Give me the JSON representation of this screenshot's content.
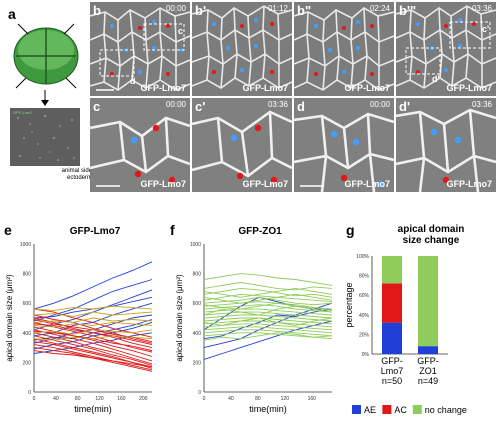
{
  "panels": {
    "a": {
      "label": "a",
      "embryo_caption": "animal side\nectoderm",
      "inset_tag": "GFP-Lmo7"
    },
    "b": {
      "label": "b",
      "time": "00:00",
      "tag": "GFP-Lmo7",
      "box_c": "c",
      "box_d": "d"
    },
    "b1": {
      "label": "b'",
      "time": "01:12",
      "tag": "GFP-Lmo7"
    },
    "b2": {
      "label": "b\"",
      "time": "02:24",
      "tag": "GFP-Lmo7"
    },
    "b3": {
      "label": "b'\"",
      "time": "03:36",
      "tag": "GFP-Lmo7",
      "box_c": "c'",
      "box_d": "d'"
    },
    "c": {
      "label": "c",
      "time": "00:00",
      "tag": "GFP-Lmo7"
    },
    "c1": {
      "label": "c'",
      "time": "03:36",
      "tag": "GFP-Lmo7"
    },
    "d": {
      "label": "d",
      "time": "00:00",
      "tag": "GFP-Lmo7"
    },
    "d1": {
      "label": "d'",
      "time": "03:36",
      "tag": "GFP-Lmo7"
    },
    "e": {
      "label": "e"
    },
    "f": {
      "label": "f"
    },
    "g": {
      "label": "g"
    }
  },
  "colors": {
    "blue": "#1f3fd8",
    "red": "#e01818",
    "green": "#8fcc5a",
    "gold": "#c8a21a"
  },
  "chart_data": [
    {
      "type": "line",
      "title": "GFP-Lmo7",
      "xlabel": "time(min)",
      "ylabel": "apical domain size (μm²)",
      "xlim": [
        0,
        216
      ],
      "ylim": [
        0,
        1000
      ],
      "xticks": [
        "0",
        "40",
        "80",
        "120",
        "160",
        "200"
      ],
      "yticks": [
        "0",
        "200",
        "400",
        "600",
        "800",
        "1000"
      ],
      "series": [
        {
          "color": "blue",
          "values": [
            560,
            600,
            650,
            710,
            770,
            820,
            880
          ]
        },
        {
          "color": "blue",
          "values": [
            480,
            520,
            560,
            620,
            680,
            720,
            760
          ]
        },
        {
          "color": "blue",
          "values": [
            420,
            460,
            490,
            540,
            590,
            640,
            690
          ]
        },
        {
          "color": "blue",
          "values": [
            380,
            400,
            450,
            470,
            520,
            560,
            600
          ]
        },
        {
          "color": "blue",
          "values": [
            330,
            360,
            400,
            420,
            460,
            500,
            520
          ]
        },
        {
          "color": "blue",
          "values": [
            290,
            320,
            340,
            380,
            400,
            430,
            470
          ]
        },
        {
          "color": "blue",
          "values": [
            260,
            280,
            300,
            330,
            350,
            380,
            400
          ]
        },
        {
          "color": "blue",
          "values": [
            350,
            370,
            360,
            400,
            420,
            450,
            490
          ]
        },
        {
          "color": "blue",
          "values": [
            500,
            510,
            540,
            560,
            580,
            610,
            640
          ]
        },
        {
          "color": "red",
          "values": [
            560,
            540,
            500,
            470,
            430,
            400,
            370
          ]
        },
        {
          "color": "red",
          "values": [
            520,
            490,
            470,
            430,
            400,
            360,
            330
          ]
        },
        {
          "color": "red",
          "values": [
            500,
            470,
            430,
            400,
            370,
            330,
            300
          ]
        },
        {
          "color": "red",
          "values": [
            470,
            440,
            410,
            380,
            340,
            300,
            270
          ]
        },
        {
          "color": "red",
          "values": [
            440,
            410,
            380,
            350,
            310,
            280,
            240
          ]
        },
        {
          "color": "red",
          "values": [
            420,
            390,
            360,
            330,
            290,
            250,
            210
          ]
        },
        {
          "color": "red",
          "values": [
            400,
            370,
            340,
            300,
            270,
            230,
            190
          ]
        },
        {
          "color": "red",
          "values": [
            380,
            350,
            320,
            290,
            250,
            220,
            180
          ]
        },
        {
          "color": "red",
          "values": [
            360,
            330,
            300,
            270,
            240,
            200,
            160
          ]
        },
        {
          "color": "red",
          "values": [
            340,
            320,
            290,
            260,
            230,
            200,
            170
          ]
        },
        {
          "color": "red",
          "values": [
            320,
            300,
            270,
            240,
            210,
            180,
            150
          ]
        },
        {
          "color": "red",
          "values": [
            300,
            280,
            260,
            230,
            200,
            170,
            140
          ]
        },
        {
          "color": "red",
          "values": [
            460,
            450,
            420,
            400,
            380,
            350,
            320
          ]
        },
        {
          "color": "red",
          "values": [
            490,
            460,
            440,
            420,
            390,
            370,
            340
          ]
        },
        {
          "color": "red",
          "values": [
            410,
            400,
            380,
            360,
            330,
            310,
            280
          ]
        },
        {
          "color": "red",
          "values": [
            280,
            260,
            250,
            230,
            210,
            190,
            170
          ]
        },
        {
          "color": "gold",
          "values": [
            520,
            530,
            510,
            540,
            520,
            530,
            540
          ]
        },
        {
          "color": "gold",
          "values": [
            450,
            440,
            460,
            450,
            470,
            460,
            450
          ]
        },
        {
          "color": "gold",
          "values": [
            400,
            410,
            390,
            420,
            410,
            400,
            420
          ]
        },
        {
          "color": "gold",
          "values": [
            470,
            480,
            470,
            500,
            480,
            490,
            480
          ]
        },
        {
          "color": "gold",
          "values": [
            360,
            350,
            370,
            360,
            380,
            370,
            360
          ]
        },
        {
          "color": "gold",
          "values": [
            560,
            550,
            570,
            560,
            580,
            570,
            560
          ]
        }
      ]
    },
    {
      "type": "line",
      "title": "GFP-ZO1",
      "xlabel": "time(min)",
      "ylabel": "apical domain size (μm²)",
      "xlim": [
        0,
        190
      ],
      "ylim": [
        0,
        1000
      ],
      "xticks": [
        "0",
        "40",
        "80",
        "120",
        "160"
      ],
      "yticks": [
        "0",
        "200",
        "400",
        "600",
        "800",
        "1000"
      ],
      "series": [
        {
          "color": "blue",
          "values": [
            300,
            330,
            360,
            420,
            470,
            520,
            560,
            600
          ]
        },
        {
          "color": "blue",
          "values": [
            220,
            260,
            300,
            340,
            380,
            420,
            450,
            480
          ]
        },
        {
          "color": "blue",
          "values": [
            420,
            500,
            580,
            640,
            610,
            580,
            560,
            560
          ]
        },
        {
          "color": "blue",
          "values": [
            360,
            380,
            430,
            470,
            520,
            510,
            540,
            560
          ]
        },
        {
          "color": "green",
          "values": [
            760,
            780,
            800,
            790,
            770,
            760,
            740,
            720
          ]
        },
        {
          "color": "green",
          "values": [
            700,
            720,
            740,
            720,
            700,
            690,
            710,
            700
          ]
        },
        {
          "color": "green",
          "values": [
            660,
            680,
            700,
            690,
            670,
            650,
            660,
            640
          ]
        },
        {
          "color": "green",
          "values": [
            620,
            640,
            660,
            650,
            640,
            630,
            620,
            610
          ]
        },
        {
          "color": "green",
          "values": [
            600,
            610,
            620,
            640,
            620,
            600,
            590,
            600
          ]
        },
        {
          "color": "green",
          "values": [
            580,
            590,
            600,
            610,
            600,
            580,
            570,
            560
          ]
        },
        {
          "color": "green",
          "values": [
            560,
            570,
            580,
            590,
            580,
            560,
            550,
            540
          ]
        },
        {
          "color": "green",
          "values": [
            540,
            550,
            560,
            560,
            550,
            540,
            530,
            520
          ]
        },
        {
          "color": "green",
          "values": [
            520,
            530,
            540,
            540,
            530,
            520,
            510,
            500
          ]
        },
        {
          "color": "green",
          "values": [
            500,
            510,
            520,
            520,
            510,
            500,
            490,
            480
          ]
        },
        {
          "color": "green",
          "values": [
            480,
            490,
            500,
            500,
            490,
            480,
            470,
            460
          ]
        },
        {
          "color": "green",
          "values": [
            460,
            470,
            480,
            480,
            470,
            460,
            450,
            440
          ]
        },
        {
          "color": "green",
          "values": [
            440,
            450,
            460,
            460,
            450,
            440,
            430,
            420
          ]
        },
        {
          "color": "green",
          "values": [
            420,
            430,
            440,
            440,
            430,
            420,
            410,
            400
          ]
        },
        {
          "color": "green",
          "values": [
            400,
            410,
            420,
            420,
            410,
            400,
            390,
            380
          ]
        },
        {
          "color": "green",
          "values": [
            380,
            390,
            400,
            400,
            390,
            380,
            370,
            360
          ]
        },
        {
          "color": "green",
          "values": [
            640,
            620,
            600,
            620,
            640,
            660,
            640,
            620
          ]
        },
        {
          "color": "green",
          "values": [
            520,
            560,
            540,
            520,
            560,
            580,
            560,
            540
          ]
        },
        {
          "color": "green",
          "values": [
            470,
            450,
            480,
            500,
            470,
            450,
            480,
            500
          ]
        },
        {
          "color": "green",
          "values": [
            350,
            370,
            360,
            380,
            400,
            390,
            370,
            380
          ]
        },
        {
          "color": "green",
          "values": [
            680,
            660,
            640,
            660,
            680,
            700,
            680,
            660
          ]
        },
        {
          "color": "green",
          "values": [
            590,
            570,
            560,
            580,
            600,
            590,
            570,
            550
          ]
        }
      ]
    },
    {
      "type": "bar",
      "title": "apical domain\nsize change",
      "ylabel": "percentage",
      "ylim": [
        0,
        100
      ],
      "yticks": [
        "0%",
        "20%",
        "40%",
        "60%",
        "80%",
        "100%"
      ],
      "categories": [
        "GFP-\nLmo7\nn=50",
        "GFP-\nZO1\nn=49"
      ],
      "series": [
        {
          "name": "AE",
          "color": "blue",
          "values": [
            32,
            8
          ]
        },
        {
          "name": "AC",
          "color": "red",
          "values": [
            40,
            0
          ]
        },
        {
          "name": "no change",
          "color": "green",
          "values": [
            28,
            92
          ]
        }
      ]
    }
  ]
}
